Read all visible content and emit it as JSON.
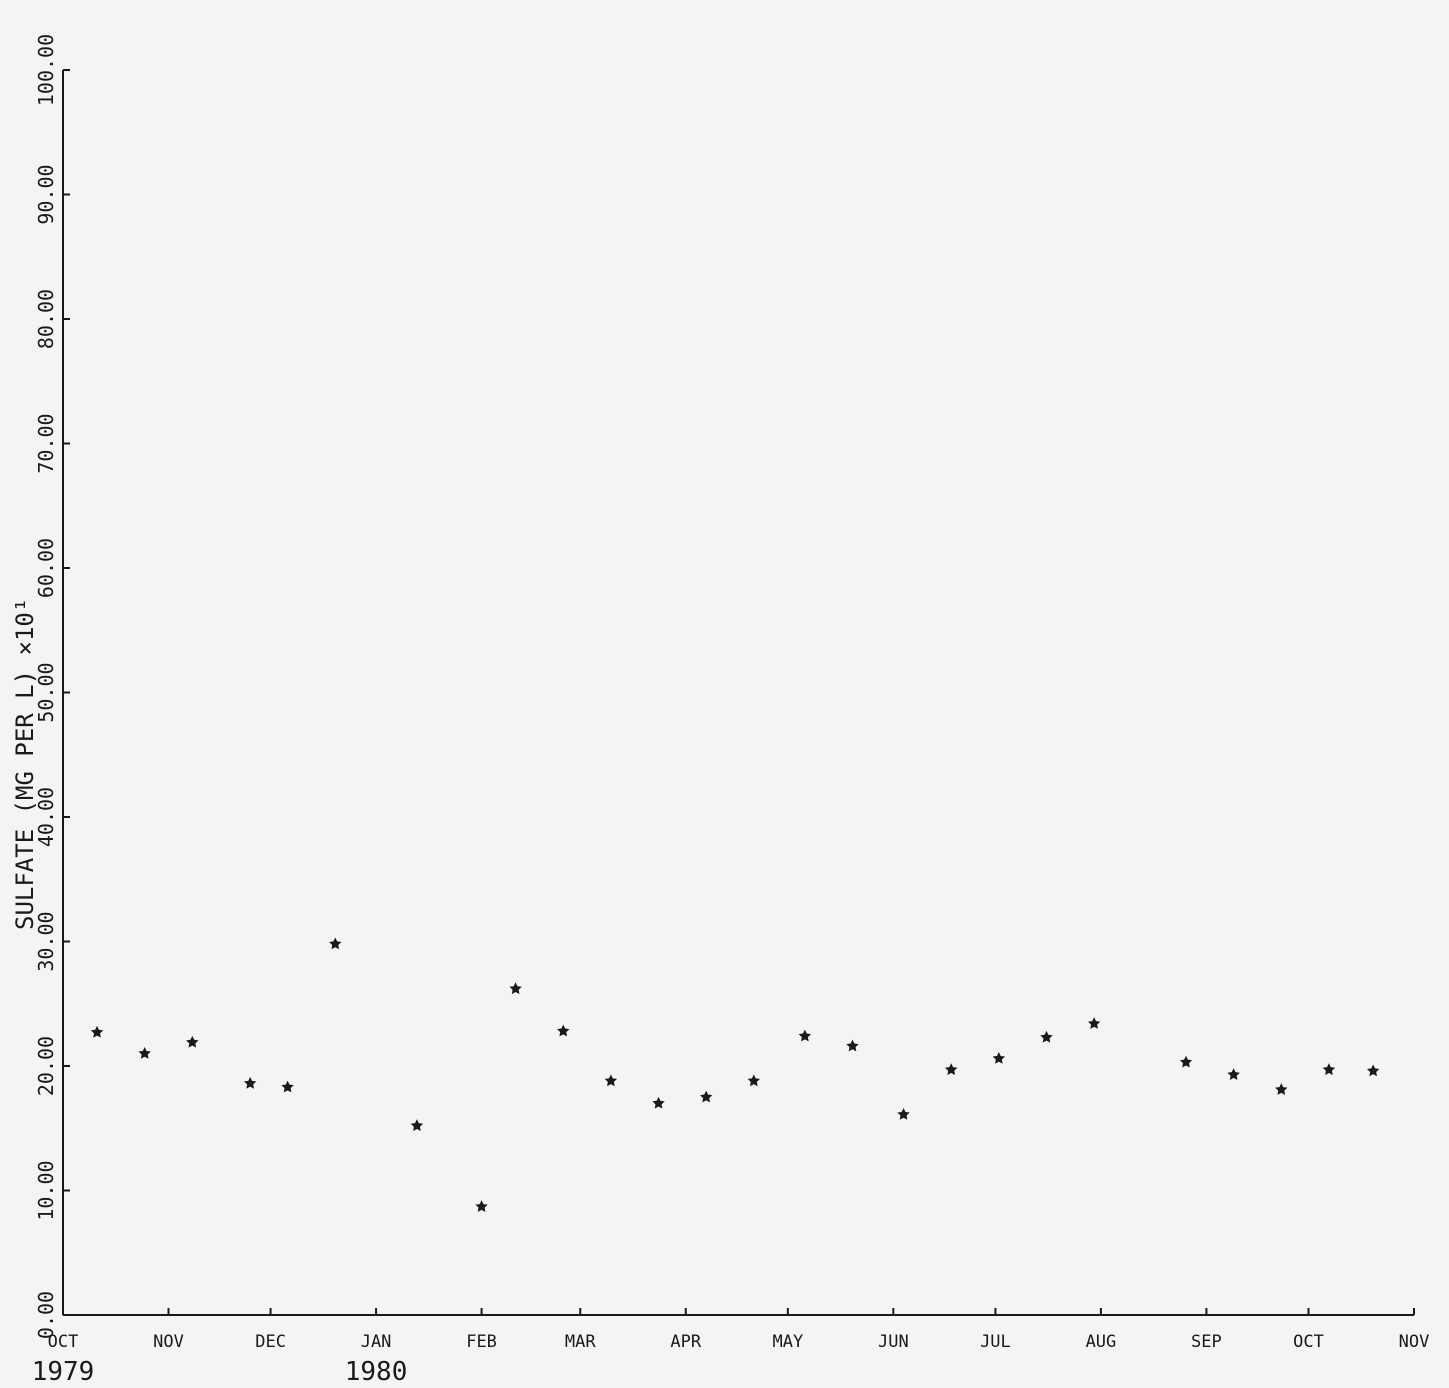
{
  "chart_data": {
    "type": "scatter",
    "title": "",
    "ylabel": "SULFATE (MG PER L)  ×10¹",
    "ylim": [
      0,
      100
    ],
    "y_ticks": [
      "0.00",
      "10.00",
      "20.00",
      "30.00",
      "40.00",
      "50.00",
      "60.00",
      "70.00",
      "80.00",
      "90.00",
      "100.00"
    ],
    "x_ticks": [
      "OCT",
      "NOV",
      "DEC",
      "JAN",
      "FEB",
      "MAR",
      "APR",
      "MAY",
      "JUN",
      "JUL",
      "AUG",
      "SEP",
      "OCT",
      "NOV"
    ],
    "year_labels": [
      {
        "text": "1979",
        "at_tick": 0
      },
      {
        "text": "1980",
        "at_tick": 3
      }
    ],
    "xlim": [
      "1979-10-01",
      "1980-11-01"
    ],
    "grid": false,
    "series": [
      {
        "marker": "star",
        "points": [
          {
            "x": "1979-10-11",
            "y": 22.7
          },
          {
            "x": "1979-10-25",
            "y": 21.0
          },
          {
            "x": "1979-11-08",
            "y": 21.9
          },
          {
            "x": "1979-11-25",
            "y": 18.6
          },
          {
            "x": "1979-12-06",
            "y": 18.3
          },
          {
            "x": "1979-12-20",
            "y": 29.8
          },
          {
            "x": "1980-01-13",
            "y": 15.2
          },
          {
            "x": "1980-02-01",
            "y": 8.7
          },
          {
            "x": "1980-02-11",
            "y": 26.2
          },
          {
            "x": "1980-02-25",
            "y": 22.8
          },
          {
            "x": "1980-03-10",
            "y": 18.8
          },
          {
            "x": "1980-03-24",
            "y": 17.0
          },
          {
            "x": "1980-04-07",
            "y": 17.5
          },
          {
            "x": "1980-04-21",
            "y": 18.8
          },
          {
            "x": "1980-05-06",
            "y": 22.4
          },
          {
            "x": "1980-05-20",
            "y": 21.6
          },
          {
            "x": "1980-06-04",
            "y": 16.1
          },
          {
            "x": "1980-06-18",
            "y": 19.7
          },
          {
            "x": "1980-07-02",
            "y": 20.6
          },
          {
            "x": "1980-07-16",
            "y": 22.3
          },
          {
            "x": "1980-07-30",
            "y": 23.4
          },
          {
            "x": "1980-08-26",
            "y": 20.3
          },
          {
            "x": "1980-09-09",
            "y": 19.3
          },
          {
            "x": "1980-09-23",
            "y": 18.1
          },
          {
            "x": "1980-10-07",
            "y": 19.7
          },
          {
            "x": "1980-10-20",
            "y": 19.6
          }
        ]
      }
    ]
  }
}
